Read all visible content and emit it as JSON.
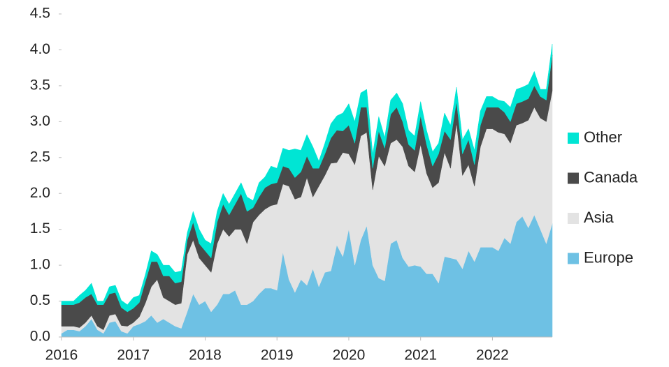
{
  "chart_data": {
    "type": "stacked_area",
    "x": [
      2016,
      2016.083,
      2016.167,
      2016.25,
      2016.333,
      2016.417,
      2016.5,
      2016.583,
      2016.667,
      2016.75,
      2016.833,
      2016.917,
      2017,
      2017.083,
      2017.167,
      2017.25,
      2017.333,
      2017.417,
      2017.5,
      2017.583,
      2017.667,
      2017.75,
      2017.833,
      2017.917,
      2018,
      2018.083,
      2018.167,
      2018.25,
      2018.333,
      2018.417,
      2018.5,
      2018.583,
      2018.667,
      2018.75,
      2018.833,
      2018.917,
      2019,
      2019.083,
      2019.167,
      2019.25,
      2019.333,
      2019.417,
      2019.5,
      2019.583,
      2019.667,
      2019.75,
      2019.833,
      2019.917,
      2020,
      2020.083,
      2020.167,
      2020.25,
      2020.333,
      2020.417,
      2020.5,
      2020.583,
      2020.667,
      2020.75,
      2020.833,
      2020.917,
      2021,
      2021.083,
      2021.167,
      2021.25,
      2021.333,
      2021.417,
      2021.5,
      2021.583,
      2021.667,
      2021.75,
      2021.833,
      2021.917,
      2022,
      2022.083,
      2022.167,
      2022.25,
      2022.333,
      2022.417,
      2022.5,
      2022.583,
      2022.667,
      2022.75,
      2022.833
    ],
    "series": [
      {
        "name": "Europe",
        "color": "#6ec1e4",
        "values": [
          0.05,
          0.1,
          0.1,
          0.08,
          0.15,
          0.25,
          0.1,
          0.05,
          0.2,
          0.22,
          0.08,
          0.05,
          0.15,
          0.18,
          0.22,
          0.3,
          0.2,
          0.25,
          0.2,
          0.15,
          0.12,
          0.35,
          0.6,
          0.45,
          0.5,
          0.35,
          0.45,
          0.6,
          0.6,
          0.65,
          0.45,
          0.45,
          0.5,
          0.6,
          0.68,
          0.68,
          0.65,
          1.18,
          0.8,
          0.62,
          0.8,
          0.72,
          0.95,
          0.7,
          0.9,
          0.92,
          1.28,
          1.12,
          1.5,
          1.0,
          1.35,
          1.55,
          1.0,
          0.82,
          0.78,
          1.3,
          1.35,
          1.1,
          0.98,
          1.0,
          0.98,
          0.88,
          0.88,
          0.75,
          1.12,
          1.1,
          1.08,
          0.95,
          1.2,
          1.05,
          1.25,
          1.25,
          1.25,
          1.2,
          1.38,
          1.3,
          1.6,
          1.68,
          1.52,
          1.7,
          1.5,
          1.3,
          1.58
        ]
      },
      {
        "name": "Asia",
        "color": "#e3e3e3",
        "values": [
          0.1,
          0.05,
          0.05,
          0.05,
          0.05,
          0.05,
          0.05,
          0.05,
          0.1,
          0.1,
          0.08,
          0.1,
          0.05,
          0.1,
          0.25,
          0.4,
          0.6,
          0.3,
          0.3,
          0.3,
          0.35,
          0.8,
          0.75,
          0.65,
          0.5,
          0.55,
          0.85,
          0.9,
          0.8,
          0.85,
          1.05,
          0.85,
          1.1,
          1.1,
          1.1,
          1.15,
          1.2,
          0.95,
          1.3,
          1.3,
          1.15,
          1.5,
          1.0,
          1.4,
          1.35,
          1.5,
          1.15,
          1.45,
          1.05,
          1.4,
          1.45,
          1.3,
          1.05,
          1.7,
          1.6,
          1.4,
          1.4,
          1.55,
          1.4,
          1.3,
          1.7,
          1.4,
          1.2,
          1.4,
          1.45,
          1.25,
          1.9,
          1.3,
          1.2,
          1.05,
          1.4,
          1.65,
          1.65,
          1.65,
          1.45,
          1.4,
          1.35,
          1.3,
          1.5,
          1.5,
          1.55,
          1.7,
          1.85
        ]
      },
      {
        "name": "Canada",
        "color": "#4a4a4a",
        "values": [
          0.3,
          0.3,
          0.3,
          0.35,
          0.35,
          0.3,
          0.3,
          0.35,
          0.3,
          0.3,
          0.25,
          0.2,
          0.2,
          0.2,
          0.3,
          0.35,
          0.25,
          0.3,
          0.35,
          0.3,
          0.3,
          0.2,
          0.25,
          0.2,
          0.2,
          0.2,
          0.3,
          0.35,
          0.3,
          0.35,
          0.5,
          0.45,
          0.2,
          0.25,
          0.3,
          0.3,
          0.3,
          0.25,
          0.25,
          0.3,
          0.35,
          0.3,
          0.4,
          0.25,
          0.3,
          0.35,
          0.45,
          0.3,
          0.4,
          0.3,
          0.4,
          0.35,
          0.3,
          0.35,
          0.25,
          0.4,
          0.45,
          0.35,
          0.3,
          0.3,
          0.4,
          0.4,
          0.3,
          0.4,
          0.3,
          0.4,
          0.3,
          0.3,
          0.35,
          0.3,
          0.3,
          0.3,
          0.3,
          0.35,
          0.3,
          0.3,
          0.3,
          0.3,
          0.3,
          0.3,
          0.3,
          0.3,
          0.5
        ]
      },
      {
        "name": "Other",
        "color": "#00e5d4",
        "values": [
          0.05,
          0.05,
          0.05,
          0.1,
          0.1,
          0.15,
          0.05,
          0.05,
          0.1,
          0.1,
          0.1,
          0.1,
          0.15,
          0.1,
          0.1,
          0.15,
          0.1,
          0.15,
          0.15,
          0.15,
          0.15,
          0.1,
          0.15,
          0.2,
          0.15,
          0.2,
          0.15,
          0.15,
          0.15,
          0.15,
          0.15,
          0.2,
          0.1,
          0.2,
          0.15,
          0.25,
          0.2,
          0.25,
          0.25,
          0.4,
          0.3,
          0.3,
          0.3,
          0.1,
          0.15,
          0.2,
          0.2,
          0.25,
          0.3,
          0.3,
          0.2,
          0.25,
          0.2,
          0.2,
          0.15,
          0.2,
          0.2,
          0.25,
          0.2,
          0.2,
          0.2,
          0.2,
          0.2,
          0.15,
          0.25,
          0.2,
          0.2,
          0.2,
          0.15,
          0.2,
          0.2,
          0.15,
          0.15,
          0.1,
          0.15,
          0.2,
          0.2,
          0.2,
          0.2,
          0.2,
          0.1,
          0.15,
          0.15
        ]
      }
    ],
    "xlim": [
      2016,
      2022.833
    ],
    "xticks": [
      2016,
      2017,
      2018,
      2019,
      2020,
      2021,
      2022
    ],
    "ylim": [
      0,
      4.5
    ],
    "yticks": [
      {
        "value": 0,
        "label": "0.0"
      },
      0.5,
      {
        "value": 1,
        "label": "1.0"
      },
      1.5,
      {
        "value": 2,
        "label": "2.0"
      },
      2.5,
      {
        "value": 3,
        "label": "3.0"
      },
      3.5,
      {
        "value": 4,
        "label": "4.0"
      },
      4.5
    ],
    "legend": "right",
    "grid": false
  }
}
